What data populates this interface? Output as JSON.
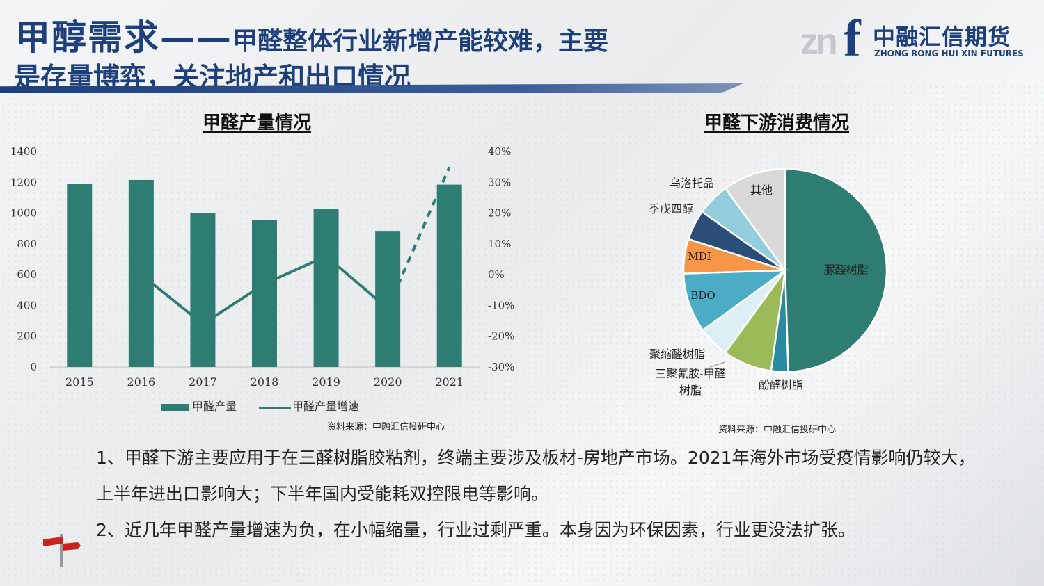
{
  "header": {
    "title_main": "甲醇需求——",
    "title_sub": "甲醛整体行业新增产能较难，主要",
    "title_line2": "是存量博弈，关注地产和出口情况"
  },
  "logo": {
    "mark_letters": "zn",
    "mark_f": "f",
    "name_cn": "中融汇信期货",
    "name_en": "ZHONG RONG HUI XIN FUTURES"
  },
  "left_chart": {
    "title": "甲醛产量情况",
    "source": "资料来源：中融汇信投研中心"
  },
  "right_chart": {
    "title": "甲醛下游消费情况",
    "source": "资料来源：中融汇信投研中心"
  },
  "notes": [
    "1、甲醛下游主要应用于在三醛树脂胶粘剂，终端主要涉及板材-房地产市场。2021年海外市场受疫情影响仍较大，上半年进出口影响大；下半年国内受能耗双控限电等影响。",
    "2、近几年甲醛产量增速为负，在小幅缩量，行业过剩严重。本身因为环保因素，行业更没法扩张。"
  ],
  "chart_data": [
    {
      "type": "bar",
      "categories": [
        "2015",
        "2016",
        "2017",
        "2018",
        "2019",
        "2020",
        "2021"
      ],
      "series": [
        {
          "name": "甲醛产量",
          "type": "bar",
          "axis": "left",
          "values": [
            1190,
            1215,
            1000,
            955,
            1025,
            880,
            1185
          ],
          "color": "#2e7d73"
        },
        {
          "name": "甲醛产量增速",
          "type": "line",
          "axis": "right",
          "values": [
            null,
            0,
            -16,
            -3,
            6,
            -11,
            35
          ],
          "dashed_segment": [
            5,
            6
          ],
          "color": "#2e7d73"
        }
      ],
      "y_left": {
        "min": 0,
        "max": 1400,
        "ticks": [
          "0",
          "200",
          "400",
          "600",
          "800",
          "1000",
          "1200",
          "1400"
        ]
      },
      "y_right": {
        "min": -30,
        "max": 40,
        "ticks": [
          "-30%",
          "-20%",
          "-10%",
          "0%",
          "10%",
          "20%",
          "30%",
          "40%"
        ]
      },
      "legend": [
        "甲醛产量",
        "甲醛产量增速"
      ],
      "legend_position": "bottom",
      "grid": false
    },
    {
      "type": "pie",
      "slices": [
        {
          "label": "脲醛树脂",
          "value": 49.5,
          "color": "#2e7d73"
        },
        {
          "label": "酚醛树脂",
          "value": 2.7,
          "color": "#2b8a9e"
        },
        {
          "label": "三聚氰胺-甲醛树脂",
          "value": 7.8,
          "color": "#9bbb59"
        },
        {
          "label": "聚缩醛树脂",
          "value": 5.0,
          "color": "#ddeef4"
        },
        {
          "label": "BDO",
          "value": 9.5,
          "color": "#4bacc6"
        },
        {
          "label": "MDI",
          "value": 5.5,
          "color": "#f79646"
        },
        {
          "label": "季戊四醇",
          "value": 4.8,
          "color": "#2a4e78"
        },
        {
          "label": "乌洛托品",
          "value": 5.2,
          "color": "#93cddd"
        },
        {
          "label": "其他",
          "value": 10.0,
          "color": "#d9d9d9"
        }
      ],
      "start": "top",
      "direction": "clockwise"
    }
  ]
}
